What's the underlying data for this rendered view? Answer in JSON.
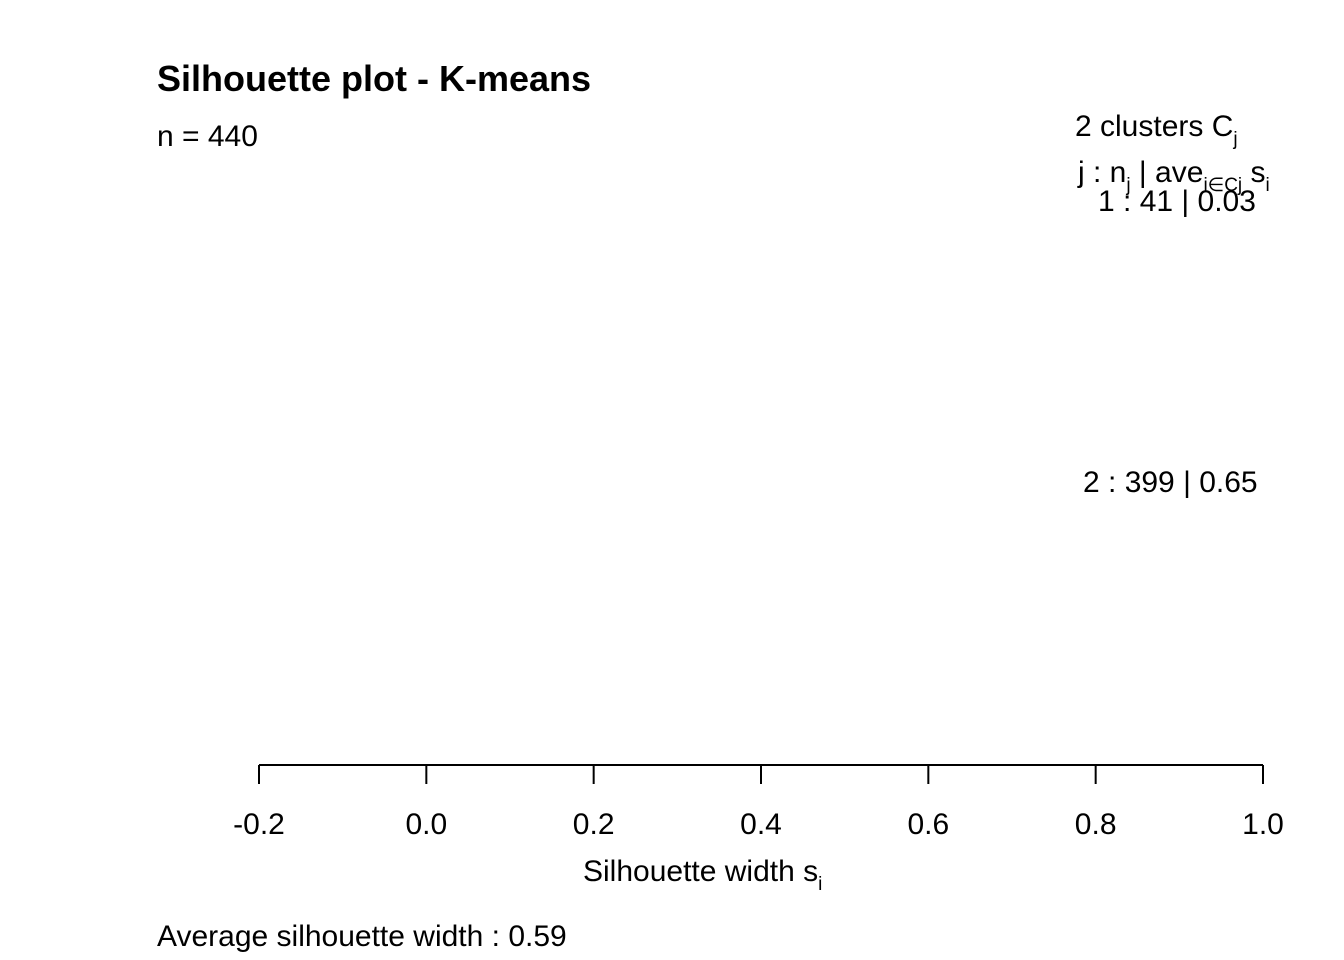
{
  "chart_data": {
    "type": "bar",
    "title": "Silhouette plot - K-means",
    "subtitle": "n = 440",
    "xlabel": "Silhouette width s",
    "xlabel_subscript": "i",
    "xlim": [
      -0.2,
      1.0
    ],
    "xticks": [
      -0.2,
      0.0,
      0.2,
      0.4,
      0.6,
      0.8,
      1.0
    ],
    "xtick_labels": [
      "-0.2",
      "0.0",
      "0.2",
      "0.4",
      "0.6",
      "0.8",
      "1.0"
    ],
    "legend": {
      "header": "2  clusters  C",
      "header_sub": "j",
      "cols_j": "j :  n",
      "cols_j_sub": "j",
      "cols_ave": " | ave",
      "cols_ave_sub": "i∈Cj",
      "cols_s": "  s",
      "cols_s_sub": "i"
    },
    "clusters": [
      {
        "label": "1 :   41  |  0.03",
        "id": 1,
        "n": 41,
        "avg_width": 0.03
      },
      {
        "label": "2 :   399  |  0.65",
        "id": 2,
        "n": 399,
        "avg_width": 0.65
      }
    ],
    "average_label": "Average silhouette width :  0.59",
    "average_width": 0.59
  }
}
